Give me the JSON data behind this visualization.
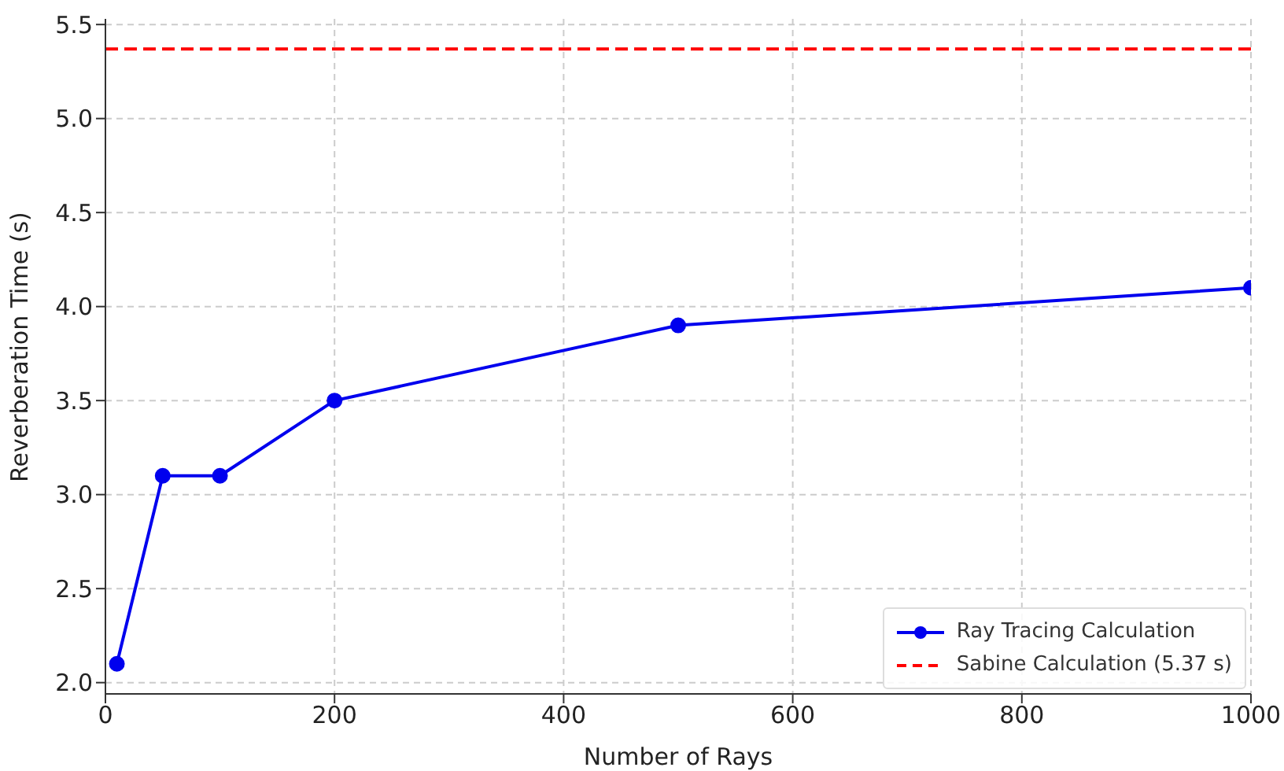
{
  "chart_data": {
    "type": "line",
    "xlabel": "Number of Rays",
    "ylabel": "Reverberation Time (s)",
    "x": [
      10,
      50,
      100,
      200,
      500,
      1000
    ],
    "series": [
      {
        "name": "Ray Tracing Calculation",
        "color": "#0000ee",
        "values": [
          2.1,
          3.1,
          3.1,
          3.5,
          3.9,
          4.1
        ]
      }
    ],
    "ref_lines": [
      {
        "axis": "y",
        "value": 5.37,
        "label": "Sabine Calculation (5.37 s)",
        "color": "#ff0000",
        "line_style": "dashed"
      }
    ],
    "xlim": [
      0,
      1000
    ],
    "xticks": [
      0,
      200,
      400,
      600,
      800,
      1000
    ],
    "ylim": [
      1.94,
      5.53
    ],
    "yticks": [
      {
        "value": 2,
        "label": "2.0"
      },
      {
        "value": 2.5,
        "label": "2.5"
      },
      {
        "value": 3,
        "label": "3.0"
      },
      {
        "value": 3.5,
        "label": "3.5"
      },
      {
        "value": 4,
        "label": "4.0"
      },
      {
        "value": 4.5,
        "label": "4.5"
      },
      {
        "value": 5,
        "label": "5.0"
      },
      {
        "value": 5.5,
        "label": "5.5"
      }
    ],
    "grid": true,
    "legend": "bottom right",
    "marker": "circle",
    "line_style": "solid"
  }
}
